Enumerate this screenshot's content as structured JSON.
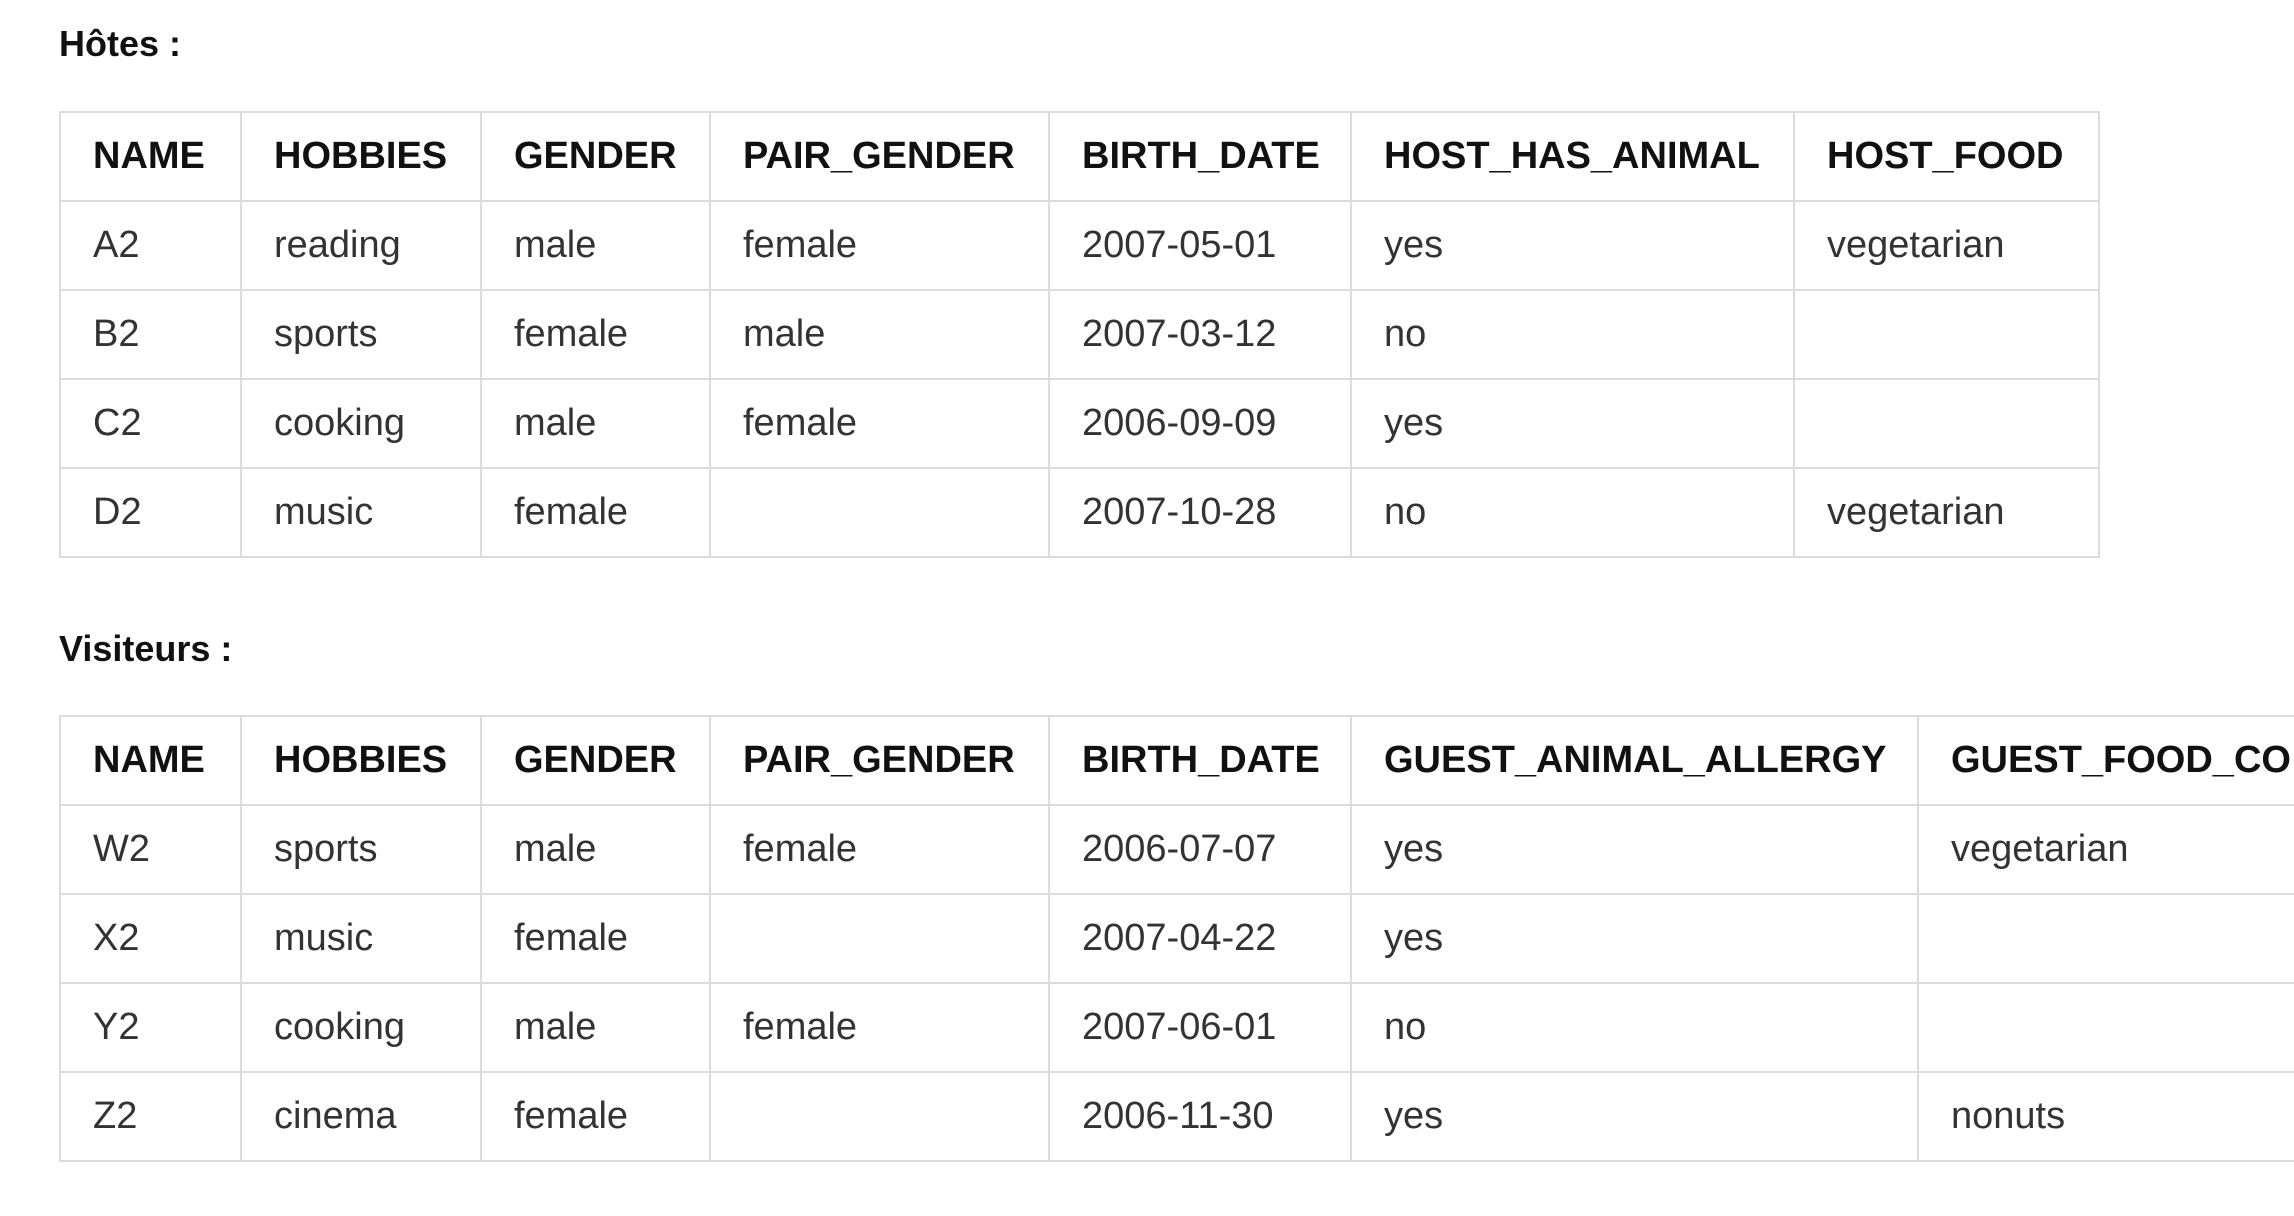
{
  "hosts": {
    "heading": "Hôtes :",
    "columns": [
      "NAME",
      "HOBBIES",
      "GENDER",
      "PAIR_GENDER",
      "BIRTH_DATE",
      "HOST_HAS_ANIMAL",
      "HOST_FOOD"
    ],
    "rows": [
      [
        "A2",
        "reading",
        "male",
        "female",
        "2007-05-01",
        "yes",
        "vegetarian"
      ],
      [
        "B2",
        "sports",
        "female",
        "male",
        "2007-03-12",
        "no",
        ""
      ],
      [
        "C2",
        "cooking",
        "male",
        "female",
        "2006-09-09",
        "yes",
        ""
      ],
      [
        "D2",
        "music",
        "female",
        "",
        "2007-10-28",
        "no",
        "vegetarian"
      ]
    ]
  },
  "visitors": {
    "heading": "Visiteurs :",
    "columns": [
      "NAME",
      "HOBBIES",
      "GENDER",
      "PAIR_GENDER",
      "BIRTH_DATE",
      "GUEST_ANIMAL_ALLERGY",
      "GUEST_FOOD_CO"
    ],
    "rows": [
      [
        "W2",
        "sports",
        "male",
        "female",
        "2006-07-07",
        "yes",
        "vegetarian"
      ],
      [
        "X2",
        "music",
        "female",
        "",
        "2007-04-22",
        "yes",
        ""
      ],
      [
        "Y2",
        "cooking",
        "male",
        "female",
        "2007-06-01",
        "no",
        ""
      ],
      [
        "Z2",
        "cinema",
        "female",
        "",
        "2006-11-30",
        "yes",
        "nonuts"
      ]
    ]
  }
}
